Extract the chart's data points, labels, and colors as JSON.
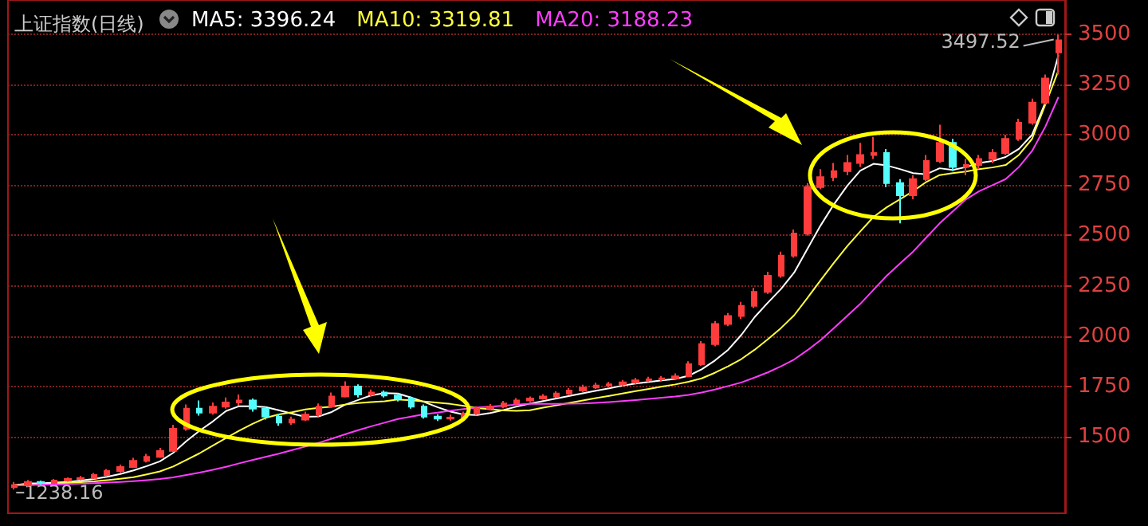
{
  "chart_data": {
    "type": "candlestick",
    "title": "上证指数(日线)",
    "categories": [
      null,
      null,
      null,
      null,
      null,
      null,
      null,
      null,
      null,
      null,
      null,
      null,
      null,
      null,
      null,
      null,
      null,
      null,
      null,
      null,
      null,
      null,
      null,
      null,
      null,
      null,
      null,
      null,
      null,
      null,
      null,
      null,
      null,
      null,
      null,
      null,
      null,
      null,
      null,
      null,
      null,
      null,
      null,
      null,
      null,
      null,
      null,
      null,
      null,
      null,
      null,
      null,
      null,
      null,
      null,
      null,
      null,
      null,
      null,
      null,
      null,
      null,
      null,
      null,
      null,
      null,
      null,
      null,
      null,
      null,
      null,
      null,
      null,
      null,
      null,
      null,
      null,
      null,
      null,
      null
    ],
    "ohlc": [
      [
        1250,
        1275,
        1238.16,
        1260
      ],
      [
        1260,
        1285,
        1252,
        1275
      ],
      [
        1275,
        1282,
        1262,
        1270
      ],
      [
        1270,
        1290,
        1265,
        1282
      ],
      [
        1282,
        1298,
        1276,
        1290
      ],
      [
        1290,
        1305,
        1283,
        1295
      ],
      [
        1295,
        1320,
        1290,
        1310
      ],
      [
        1310,
        1340,
        1305,
        1330
      ],
      [
        1330,
        1362,
        1322,
        1350
      ],
      [
        1350,
        1395,
        1345,
        1380
      ],
      [
        1380,
        1415,
        1372,
        1400
      ],
      [
        1400,
        1445,
        1395,
        1430
      ],
      [
        1430,
        1560,
        1425,
        1540
      ],
      [
        1540,
        1660,
        1530,
        1640
      ],
      [
        1640,
        1680,
        1605,
        1620
      ],
      [
        1620,
        1670,
        1610,
        1650
      ],
      [
        1650,
        1695,
        1640,
        1670
      ],
      [
        1670,
        1710,
        1655,
        1680
      ],
      [
        1680,
        1690,
        1625,
        1640
      ],
      [
        1640,
        1650,
        1585,
        1600
      ],
      [
        1600,
        1615,
        1555,
        1570
      ],
      [
        1570,
        1600,
        1560,
        1585
      ],
      [
        1585,
        1625,
        1578,
        1610
      ],
      [
        1610,
        1665,
        1600,
        1650
      ],
      [
        1650,
        1720,
        1645,
        1700
      ],
      [
        1700,
        1775,
        1695,
        1750
      ],
      [
        1750,
        1760,
        1695,
        1710
      ],
      [
        1710,
        1735,
        1700,
        1720
      ],
      [
        1720,
        1730,
        1695,
        1705
      ],
      [
        1705,
        1715,
        1675,
        1690
      ],
      [
        1690,
        1700,
        1640,
        1650
      ],
      [
        1650,
        1660,
        1590,
        1600
      ],
      [
        1600,
        1612,
        1578,
        1590
      ],
      [
        1590,
        1610,
        1580,
        1595
      ],
      [
        1595,
        1625,
        1588,
        1615
      ],
      [
        1615,
        1652,
        1608,
        1640
      ],
      [
        1640,
        1662,
        1632,
        1650
      ],
      [
        1650,
        1678,
        1642,
        1665
      ],
      [
        1665,
        1692,
        1658,
        1680
      ],
      [
        1680,
        1700,
        1672,
        1690
      ],
      [
        1690,
        1712,
        1684,
        1700
      ],
      [
        1700,
        1726,
        1694,
        1715
      ],
      [
        1715,
        1742,
        1708,
        1730
      ],
      [
        1730,
        1758,
        1722,
        1745
      ],
      [
        1745,
        1768,
        1738,
        1755
      ],
      [
        1755,
        1772,
        1742,
        1760
      ],
      [
        1760,
        1782,
        1752,
        1770
      ],
      [
        1770,
        1792,
        1762,
        1780
      ],
      [
        1780,
        1798,
        1772,
        1785
      ],
      [
        1785,
        1802,
        1776,
        1790
      ],
      [
        1790,
        1815,
        1782,
        1800
      ],
      [
        1800,
        1875,
        1795,
        1860
      ],
      [
        1860,
        1975,
        1852,
        1960
      ],
      [
        1960,
        2075,
        1950,
        2060
      ],
      [
        2060,
        2115,
        2050,
        2100
      ],
      [
        2100,
        2170,
        2085,
        2150
      ],
      [
        2150,
        2240,
        2140,
        2220
      ],
      [
        2220,
        2320,
        2210,
        2300
      ],
      [
        2300,
        2420,
        2290,
        2400
      ],
      [
        2400,
        2530,
        2390,
        2510
      ],
      [
        2510,
        2760,
        2500,
        2740
      ],
      [
        2740,
        2830,
        2730,
        2790
      ],
      [
        2790,
        2860,
        2770,
        2820
      ],
      [
        2820,
        2900,
        2800,
        2860
      ],
      [
        2860,
        2960,
        2840,
        2900
      ],
      [
        2900,
        2990,
        2880,
        2910
      ],
      [
        2910,
        2930,
        2740,
        2760
      ],
      [
        2760,
        2780,
        2560,
        2700
      ],
      [
        2700,
        2800,
        2680,
        2780
      ],
      [
        2780,
        2900,
        2770,
        2870
      ],
      [
        2870,
        3050,
        2860,
        2960
      ],
      [
        2960,
        2980,
        2820,
        2840
      ],
      [
        2840,
        2880,
        2800,
        2850
      ],
      [
        2850,
        2900,
        2830,
        2880
      ],
      [
        2880,
        2930,
        2860,
        2910
      ],
      [
        2910,
        3000,
        2900,
        2980
      ],
      [
        2980,
        3080,
        2970,
        3060
      ],
      [
        3060,
        3180,
        3050,
        3160
      ],
      [
        3160,
        3300,
        3150,
        3280
      ],
      [
        3410,
        3497.52,
        3300,
        3470
      ]
    ],
    "colors": [
      "#ff3c3c",
      "#ff3c3c",
      "#54fcfc",
      "#ff3c3c",
      "#ff3c3c",
      "#ff3c3c",
      "#ff3c3c",
      "#ff3c3c",
      "#ff3c3c",
      "#ff3c3c",
      "#ff3c3c",
      "#ff3c3c",
      "#ff3c3c",
      "#ff3c3c",
      "#54fcfc",
      "#ff3c3c",
      "#ff3c3c",
      "#ff3c3c",
      "#54fcfc",
      "#54fcfc",
      "#54fcfc",
      "#ff3c3c",
      "#ff3c3c",
      "#ff3c3c",
      "#ff3c3c",
      "#ff3c3c",
      "#54fcfc",
      "#ff3c3c",
      "#54fcfc",
      "#54fcfc",
      "#54fcfc",
      "#54fcfc",
      "#54fcfc",
      "#ff3c3c",
      "#ff3c3c",
      "#ff3c3c",
      "#ff3c3c",
      "#ff3c3c",
      "#ff3c3c",
      "#ff3c3c",
      "#ff3c3c",
      "#ff3c3c",
      "#ff3c3c",
      "#ff3c3c",
      "#ff3c3c",
      "#ff3c3c",
      "#ff3c3c",
      "#ff3c3c",
      "#ff3c3c",
      "#ff3c3c",
      "#ff3c3c",
      "#ff3c3c",
      "#ff3c3c",
      "#ff3c3c",
      "#ff3c3c",
      "#ff3c3c",
      "#ff3c3c",
      "#ff3c3c",
      "#ff3c3c",
      "#ff3c3c",
      "#ff3c3c",
      "#ff3c3c",
      "#ff3c3c",
      "#ff3c3c",
      "#ff3c3c",
      "#ff3c3c",
      "#54fcfc",
      "#54fcfc",
      "#ff3c3c",
      "#ff3c3c",
      "#ff3c3c",
      "#54fcfc",
      "#ff3c3c",
      "#ff3c3c",
      "#ff3c3c",
      "#ff3c3c",
      "#ff3c3c",
      "#ff3c3c",
      "#ff3c3c",
      "#ff3c3c"
    ],
    "series": [
      {
        "name": "MA5: 3396.24",
        "type": "line",
        "color": "#ffffff",
        "values": [
          1260,
          1268,
          1268,
          1272,
          1275,
          1282,
          1290,
          1301,
          1315,
          1333,
          1354,
          1378,
          1420,
          1478,
          1530,
          1576,
          1628,
          1652,
          1652,
          1648,
          1632,
          1615,
          1599,
          1601,
          1623,
          1659,
          1683,
          1706,
          1717,
          1715,
          1695,
          1673,
          1647,
          1625,
          1610,
          1608,
          1618,
          1633,
          1650,
          1665,
          1677,
          1690,
          1703,
          1716,
          1729,
          1741,
          1754,
          1764,
          1772,
          1780,
          1787,
          1803,
          1835,
          1879,
          1932,
          2006,
          2094,
          2166,
          2234,
          2316,
          2434,
          2550,
          2654,
          2746,
          2822,
          2856,
          2848,
          2830,
          2810,
          2804,
          2834,
          2826,
          2840,
          2860,
          2870,
          2890,
          2930,
          3000,
          3160,
          3396
        ]
      },
      {
        "name": "MA10: 3319.81",
        "type": "line",
        "color": "#ffff3c",
        "values": [
          1260,
          1264,
          1265,
          1268,
          1270,
          1274,
          1278,
          1284,
          1291,
          1299,
          1313,
          1328,
          1352,
          1385,
          1418,
          1456,
          1494,
          1530,
          1564,
          1594,
          1611,
          1622,
          1636,
          1644,
          1650,
          1660,
          1667,
          1672,
          1676,
          1685,
          1681,
          1675,
          1669,
          1663,
          1654,
          1643,
          1637,
          1631,
          1629,
          1632,
          1645,
          1656,
          1668,
          1680,
          1692,
          1703,
          1715,
          1727,
          1738,
          1750,
          1760,
          1773,
          1790,
          1818,
          1850,
          1886,
          1932,
          1984,
          2040,
          2104,
          2190,
          2278,
          2364,
          2446,
          2520,
          2592,
          2640,
          2680,
          2720,
          2766,
          2800,
          2810,
          2818,
          2830,
          2838,
          2850,
          2900,
          2980,
          3150,
          3320
        ]
      },
      {
        "name": "MA20: 3188.23",
        "type": "line",
        "color": "#ff3cff",
        "values": [
          1258,
          1260,
          1262,
          1263,
          1265,
          1267,
          1269,
          1272,
          1275,
          1279,
          1284,
          1290,
          1298,
          1310,
          1322,
          1336,
          1351,
          1368,
          1384,
          1400,
          1416,
          1434,
          1451,
          1470,
          1490,
          1512,
          1533,
          1552,
          1570,
          1588,
          1600,
          1612,
          1620,
          1630,
          1638,
          1646,
          1650,
          1655,
          1660,
          1664,
          1663,
          1663,
          1664,
          1665,
          1668,
          1672,
          1677,
          1682,
          1688,
          1694,
          1700,
          1708,
          1720,
          1735,
          1752,
          1770,
          1794,
          1820,
          1850,
          1884,
          1930,
          1980,
          2040,
          2100,
          2160,
          2230,
          2300,
          2360,
          2420,
          2490,
          2560,
          2620,
          2680,
          2720,
          2750,
          2780,
          2840,
          2920,
          3040,
          3188
        ]
      }
    ],
    "ylim": [
      1120,
      3670
    ],
    "yticks": [
      1500,
      1750,
      2000,
      2250,
      2500,
      2750,
      3000,
      3250,
      3500
    ],
    "grid": "y",
    "legend": "top left",
    "marker": "none",
    "annotations": [
      "3497.52",
      {
        "text": "1238.16",
        "y": 1238.16
      }
    ]
  }
}
